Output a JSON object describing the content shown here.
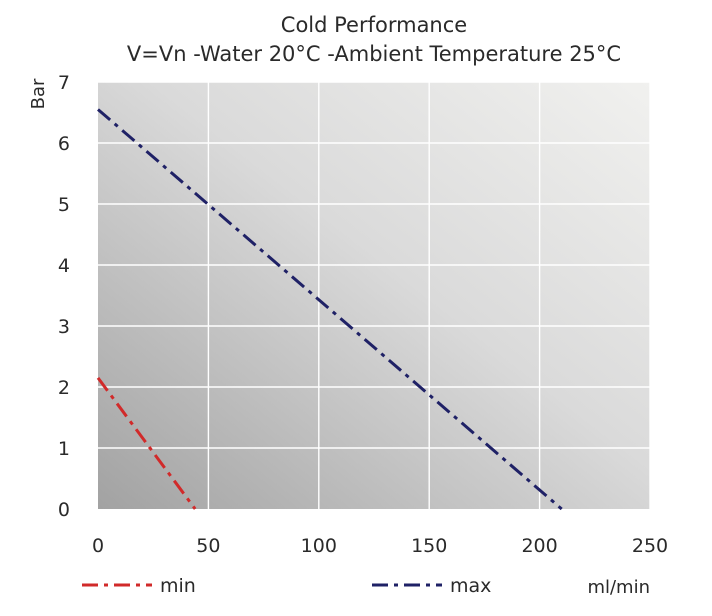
{
  "chart_data": {
    "type": "line",
    "title": "Cold Performance",
    "subtitle": "V=Vn -Water 20°C -Ambient Temperature 25°C",
    "xlabel": "ml/min",
    "ylabel": "Bar",
    "xlim": [
      0,
      250
    ],
    "ylim": [
      0,
      7
    ],
    "x_ticks": [
      0,
      50,
      100,
      150,
      200,
      250
    ],
    "y_ticks": [
      0,
      1,
      2,
      3,
      4,
      5,
      6,
      7
    ],
    "grid": true,
    "legend_position": "bottom-left",
    "series": [
      {
        "name": "min",
        "color": "#d12a2a",
        "line_style": "dash-dot",
        "x": [
          0,
          44
        ],
        "y": [
          2.15,
          0
        ]
      },
      {
        "name": "max",
        "color": "#1f2166",
        "line_style": "dash-dot",
        "x": [
          0,
          210
        ],
        "y": [
          6.55,
          0
        ]
      }
    ]
  }
}
